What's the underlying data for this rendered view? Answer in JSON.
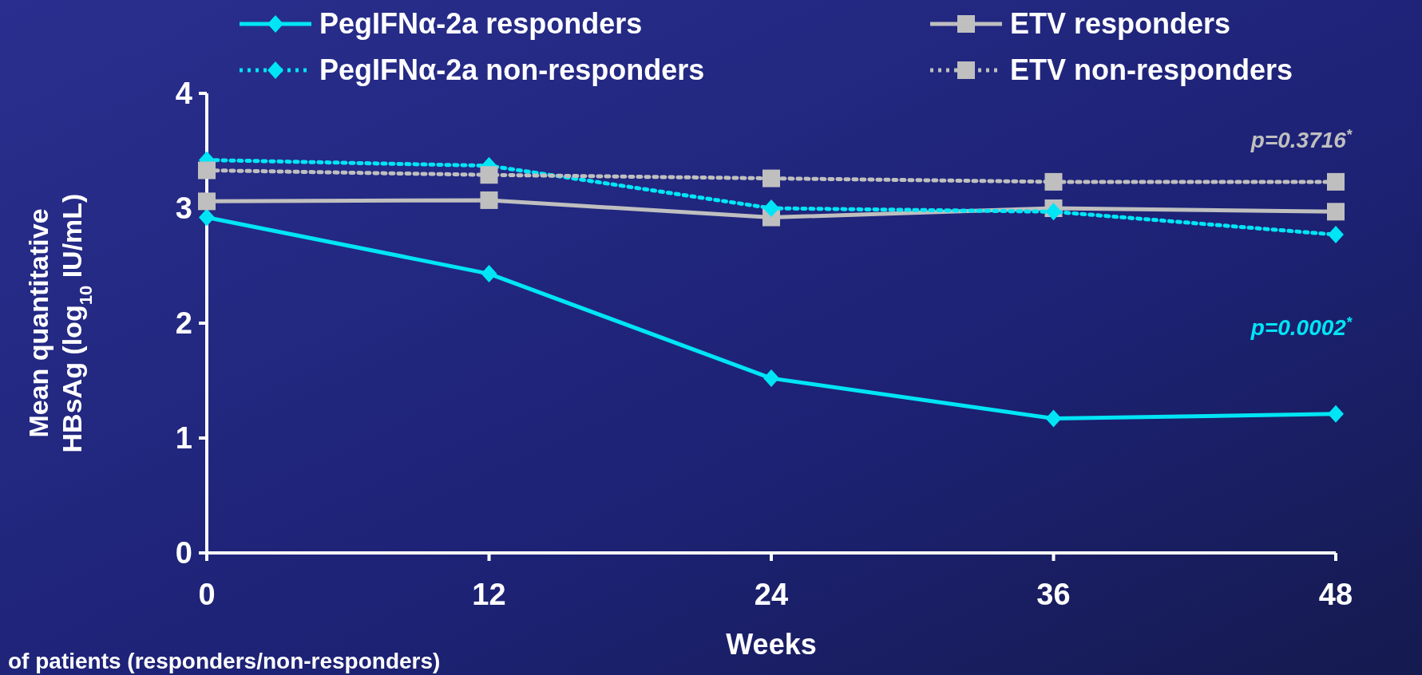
{
  "chart_data": {
    "type": "line",
    "xlabel": "Weeks",
    "ylabel": "Mean quantitative HBsAg (log$_{10}$ IU/mL)",
    "x": [
      0,
      12,
      24,
      36,
      48
    ],
    "xlim": [
      0,
      48
    ],
    "xticks": [
      0,
      12,
      24,
      36,
      48
    ],
    "ylim": [
      0,
      4
    ],
    "yticks": [
      0,
      1,
      2,
      3,
      4
    ],
    "legend": "top",
    "grid": false,
    "series": [
      {
        "name": "PegIFNα-2a responders",
        "color": "#00e5f5",
        "values": [
          2.92,
          2.43,
          1.52,
          1.17,
          1.21
        ],
        "marker": "diamond",
        "line_style": "solid"
      },
      {
        "name": "ETV responders",
        "color": "#bfbfbf",
        "values": [
          3.06,
          3.07,
          2.92,
          3.0,
          2.97
        ],
        "marker": "square",
        "line_style": "solid"
      },
      {
        "name": "PegIFNα-2a non-responders",
        "color": "#00e5f5",
        "values": [
          3.42,
          3.37,
          3.0,
          2.97,
          2.77
        ],
        "marker": "diamond",
        "line_style": "dotted"
      },
      {
        "name": "ETV non-responders",
        "color": "#bfbfbf",
        "values": [
          3.33,
          3.29,
          3.26,
          3.23,
          3.23
        ],
        "marker": "square",
        "line_style": "dotted"
      }
    ],
    "annotations": [
      "p=0.3716$^{*}$",
      "p=0.0002$^{*}$",
      "of patients (responders/non-responders)"
    ]
  }
}
